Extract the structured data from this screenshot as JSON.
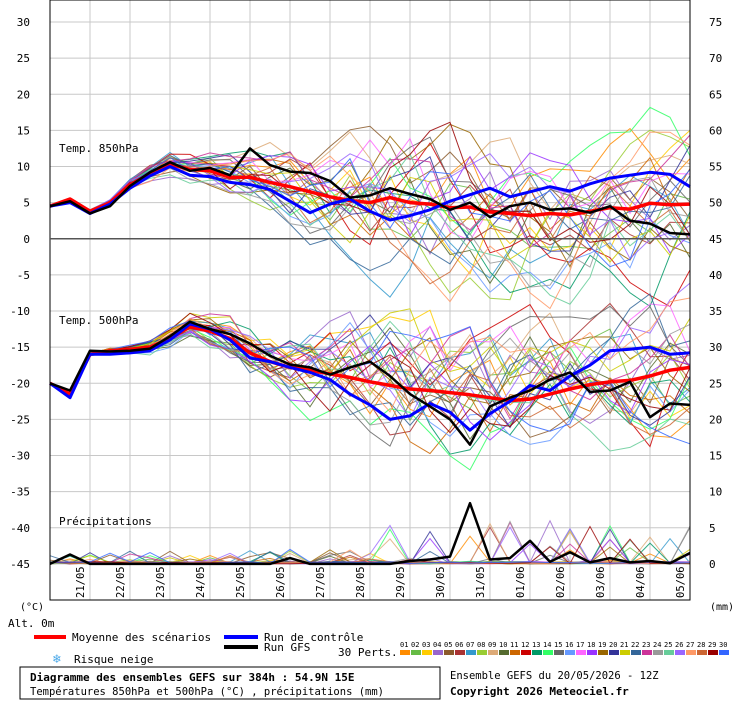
{
  "chart_data": {
    "type": "line",
    "title": "Diagramme des ensembles GEFS sur 384h : 54.9N 15E",
    "subtitle": "Températures 850hPa et 500hPa (°C) , précipitations (mm)",
    "run_info": "Ensemble GEFS du 20/05/2026 - 12Z",
    "copyright": "Copyright 2026 Meteociel.fr",
    "ylabel_left": "(°C)",
    "ylabel_right": "(mm)",
    "altitude_label": "Alt. 0m",
    "ylim_left": [
      -50,
      30
    ],
    "ylim_right": [
      -5,
      75
    ],
    "left_ticks": [
      "30",
      "25",
      "20",
      "15",
      "10",
      "5",
      "0",
      "-5",
      "-10",
      "-15",
      "-20",
      "-25",
      "-30",
      "-35",
      "-40",
      "-45"
    ],
    "right_ticks": [
      "75",
      "70",
      "65",
      "60",
      "55",
      "50",
      "45",
      "40",
      "35",
      "30",
      "25",
      "20",
      "15",
      "10",
      "5",
      "0"
    ],
    "x_ticks": [
      "21/05",
      "22/05",
      "23/05",
      "24/05",
      "25/05",
      "26/05",
      "27/05",
      "28/05",
      "29/05",
      "30/05",
      "31/05",
      "01/06",
      "02/06",
      "03/06",
      "04/06",
      "05/06"
    ],
    "x_hours": [
      0,
      384
    ],
    "panels": [
      {
        "label": "Temp. 850hPa",
        "axis": "left °C"
      },
      {
        "label": "Temp. 500hPa",
        "axis": "left °C"
      },
      {
        "label": "Précipitations",
        "axis": "right mm"
      }
    ],
    "legend": [
      {
        "label": "Moyenne des scénarios",
        "color": "#ff0000"
      },
      {
        "label": "Run de contrôle",
        "color": "#0000ff"
      },
      {
        "label": "Run GFS",
        "color": "#000000"
      },
      {
        "label": "Risque neige",
        "color": "#4aa8e8"
      }
    ],
    "perturbations_label": "30 Perts.",
    "perturbation_ids": [
      "01",
      "02",
      "03",
      "04",
      "05",
      "06",
      "07",
      "08",
      "09",
      "10",
      "11",
      "12",
      "13",
      "14",
      "15",
      "16",
      "17",
      "18",
      "19",
      "20",
      "21",
      "22",
      "23",
      "24",
      "25",
      "26",
      "27",
      "28",
      "29",
      "30"
    ],
    "perturbation_colors": [
      "#ff8c00",
      "#66bb44",
      "#ffcc00",
      "#9966cc",
      "#8b5a2b",
      "#aa3333",
      "#3399cc",
      "#99cc33",
      "#ddaa77",
      "#556b2f",
      "#cc6600",
      "#cc0000",
      "#009966",
      "#33ff66",
      "#666666",
      "#6699ff",
      "#ff66ff",
      "#9933ff",
      "#996600",
      "#333399",
      "#cccc00",
      "#336699",
      "#cc3399",
      "#999999",
      "#66cc99",
      "#9966ff",
      "#ff9966",
      "#cc6633",
      "#990000",
      "#3366ff"
    ],
    "series": [
      {
        "name": "Moyenne des scénarios",
        "panel": "850hPa",
        "x_hours": [
          0,
          12,
          24,
          36,
          48,
          60,
          72,
          84,
          96,
          108,
          120,
          132,
          144,
          156,
          168,
          180,
          192,
          204,
          216,
          228,
          240,
          252,
          264,
          276,
          288,
          300,
          312,
          324,
          336,
          348,
          360,
          372,
          384
        ],
        "values": [
          4.5,
          5.5,
          3.8,
          5.0,
          7.5,
          9.0,
          10.3,
          9.6,
          9.4,
          8.5,
          8.5,
          7.8,
          7.2,
          6.5,
          5.8,
          5.3,
          5.0,
          5.7,
          5.0,
          4.8,
          4.3,
          4.4,
          3.7,
          3.5,
          3.2,
          3.5,
          3.3,
          3.8,
          4.3,
          4.1,
          4.9,
          4.7,
          4.8
        ]
      },
      {
        "name": "Moyenne des scénarios",
        "panel": "500hPa",
        "x_hours": [
          0,
          12,
          24,
          36,
          48,
          60,
          72,
          84,
          96,
          108,
          120,
          132,
          144,
          156,
          168,
          180,
          192,
          204,
          216,
          228,
          240,
          252,
          264,
          276,
          288,
          300,
          312,
          324,
          336,
          348,
          360,
          372,
          384
        ],
        "values": [
          -20,
          -21.5,
          -16,
          -15.5,
          -15.3,
          -15.0,
          -13.8,
          -12.2,
          -12.8,
          -13.8,
          -15.8,
          -17.0,
          -17.8,
          -18.2,
          -18.7,
          -19.2,
          -19.8,
          -20.3,
          -20.8,
          -21.0,
          -21.3,
          -21.6,
          -22.0,
          -22.4,
          -22.2,
          -21.5,
          -20.8,
          -20.2,
          -19.8,
          -19.6,
          -19.0,
          -18.2,
          -17.8
        ]
      },
      {
        "name": "Run de contrôle",
        "panel": "850hPa",
        "x_hours": [
          0,
          12,
          24,
          36,
          48,
          60,
          72,
          84,
          96,
          108,
          120,
          132,
          144,
          156,
          168,
          180,
          192,
          204,
          216,
          228,
          240,
          252,
          264,
          276,
          288,
          300,
          312,
          324,
          336,
          348,
          360,
          372,
          384
        ],
        "values": [
          4.5,
          5.0,
          3.5,
          4.8,
          7.0,
          8.7,
          10.0,
          8.8,
          8.6,
          7.8,
          7.5,
          6.8,
          5.2,
          3.6,
          4.8,
          5.5,
          3.8,
          2.6,
          3.2,
          4.0,
          5.2,
          6.1,
          7.0,
          5.8,
          6.5,
          7.2,
          6.6,
          7.6,
          8.4,
          8.8,
          9.2,
          8.9,
          7.2
        ]
      },
      {
        "name": "Run de contrôle",
        "panel": "500hPa",
        "x_hours": [
          0,
          12,
          24,
          36,
          48,
          60,
          72,
          84,
          96,
          108,
          120,
          132,
          144,
          156,
          168,
          180,
          192,
          204,
          216,
          228,
          240,
          252,
          264,
          276,
          288,
          300,
          312,
          324,
          336,
          348,
          360,
          372,
          384
        ],
        "values": [
          -20,
          -22,
          -16,
          -16,
          -15.8,
          -15.5,
          -14,
          -11.8,
          -12.5,
          -14,
          -16.5,
          -17,
          -17.8,
          -18.5,
          -19.5,
          -21.5,
          -23,
          -25,
          -24.5,
          -22.8,
          -24,
          -26.5,
          -24.2,
          -22.5,
          -20.3,
          -21,
          -19,
          -17.5,
          -15.5,
          -15.3,
          -15,
          -16,
          -15.8
        ]
      },
      {
        "name": "Run GFS",
        "panel": "850hPa",
        "x_hours": [
          0,
          12,
          24,
          36,
          48,
          60,
          72,
          84,
          96,
          108,
          120,
          132,
          144,
          156,
          168,
          180,
          192,
          204,
          216,
          228,
          240,
          252,
          264,
          276,
          288,
          300,
          312,
          324,
          336,
          348,
          360,
          372,
          384
        ],
        "values": [
          4.5,
          5.2,
          3.5,
          4.5,
          7.3,
          9.2,
          10.6,
          9.4,
          9.8,
          8.8,
          12.5,
          10.2,
          9.3,
          9.1,
          8.0,
          5.7,
          6.0,
          7.0,
          6.2,
          5.5,
          4.0,
          5.0,
          3.0,
          4.5,
          5.0,
          4.0,
          4.2,
          3.6,
          4.5,
          2.5,
          2.1,
          0.8,
          0.6
        ]
      },
      {
        "name": "Run GFS",
        "panel": "500hPa",
        "x_hours": [
          0,
          12,
          24,
          36,
          48,
          60,
          72,
          84,
          96,
          108,
          120,
          132,
          144,
          156,
          168,
          180,
          192,
          204,
          216,
          228,
          240,
          252,
          264,
          276,
          288,
          300,
          312,
          324,
          336,
          348,
          360,
          372,
          384
        ],
        "values": [
          -20,
          -21,
          -15.5,
          -15.6,
          -15.5,
          -15.2,
          -13.5,
          -11.5,
          -12.5,
          -13.2,
          -14.5,
          -16.2,
          -17.4,
          -17.8,
          -18.8,
          -17.8,
          -17.0,
          -19.0,
          -21.5,
          -23.2,
          -25.0,
          -28.5,
          -23.2,
          -22.0,
          -21.0,
          -19.5,
          -18.5,
          -21.2,
          -21.0,
          -19.8,
          -24.7,
          -22.8,
          -23.0
        ]
      },
      {
        "name": "Run GFS",
        "panel": "précipitations",
        "x_hours": [
          0,
          12,
          24,
          36,
          48,
          60,
          72,
          84,
          96,
          108,
          120,
          132,
          144,
          156,
          168,
          180,
          192,
          204,
          216,
          228,
          240,
          252,
          264,
          276,
          288,
          300,
          312,
          324,
          336,
          348,
          360,
          372,
          384
        ],
        "values": [
          0,
          1.3,
          0,
          0,
          0,
          0,
          0,
          0,
          0,
          0,
          0,
          0,
          0.8,
          0,
          0,
          0,
          0,
          0,
          0.4,
          0.6,
          1.0,
          8.4,
          0.6,
          0.8,
          3.2,
          0.3,
          1.6,
          0.2,
          0.8,
          0.2,
          0.4,
          0.1,
          1.5
        ]
      }
    ]
  }
}
